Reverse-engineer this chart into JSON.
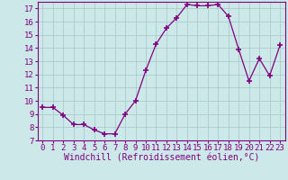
{
  "x": [
    0,
    1,
    2,
    3,
    4,
    5,
    6,
    7,
    8,
    9,
    10,
    11,
    12,
    13,
    14,
    15,
    16,
    17,
    18,
    19,
    20,
    21,
    22,
    23
  ],
  "y": [
    9.5,
    9.5,
    8.9,
    8.2,
    8.2,
    7.8,
    7.5,
    7.5,
    9.0,
    10.0,
    12.3,
    14.3,
    15.5,
    16.3,
    17.3,
    17.2,
    17.2,
    17.3,
    16.4,
    13.9,
    11.5,
    13.2,
    11.9,
    14.2
  ],
  "xlabel": "Windchill (Refroidissement éolien,°C)",
  "ylim": [
    7,
    17.5
  ],
  "xlim": [
    -0.5,
    23.5
  ],
  "yticks": [
    7,
    8,
    9,
    10,
    11,
    12,
    13,
    14,
    15,
    16,
    17
  ],
  "xticks": [
    0,
    1,
    2,
    3,
    4,
    5,
    6,
    7,
    8,
    9,
    10,
    11,
    12,
    13,
    14,
    15,
    16,
    17,
    18,
    19,
    20,
    21,
    22,
    23
  ],
  "line_color": "#800080",
  "marker": "+",
  "marker_size": 4,
  "bg_color": "#cce8e8",
  "grid_color": "#aacccc",
  "label_fontsize": 7,
  "tick_fontsize": 6.5
}
